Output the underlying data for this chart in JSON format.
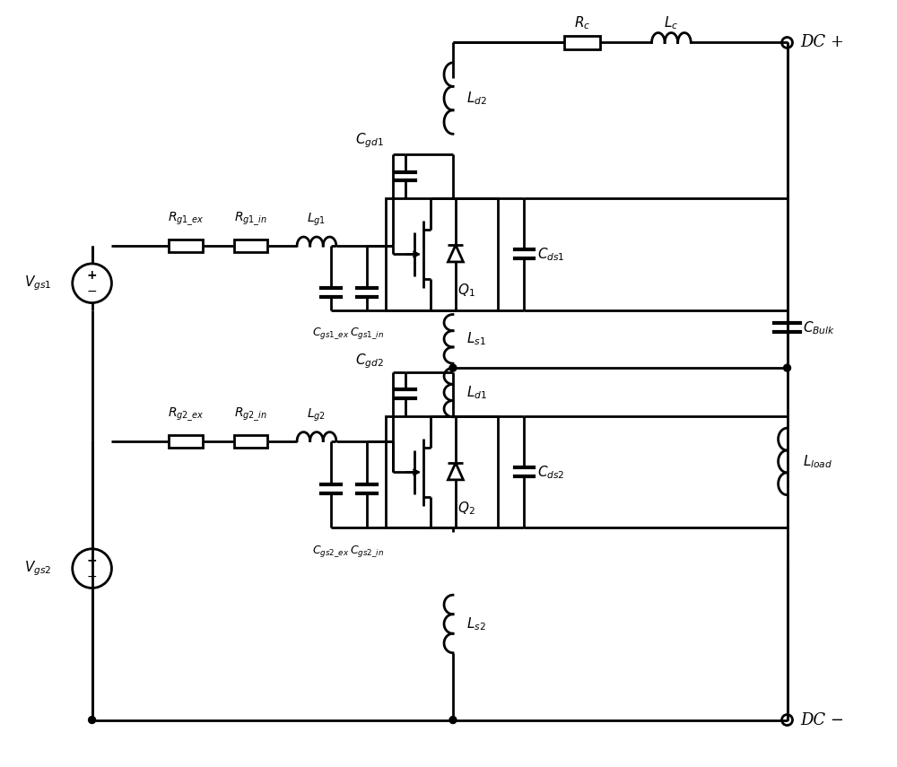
{
  "bg_color": "#ffffff",
  "line_color": "#000000",
  "lw": 2.0,
  "fig_width": 10.0,
  "fig_height": 8.55,
  "labels": {
    "Vgs1": "$V_{gs1}$",
    "Vgs2": "$V_{gs2}$",
    "Rg1ex": "$R_{g1\\_ex}$",
    "Rg1in": "$R_{g1\\_in}$",
    "Lg1": "$L_{g1}$",
    "Cgd1": "$C_{gd1}$",
    "Cgs1ex": "$C_{gs1\\_ex}$",
    "Cgs1in": "$C_{gs1\\_in}$",
    "Q1": "$Q_1$",
    "Cds1": "$C_{ds1}$",
    "Ld2": "$L_{d2}$",
    "Ls1": "$L_{s1}$",
    "Rc": "$R_c$",
    "Lc": "$L_c$",
    "CBulk": "$C_{Bulk}$",
    "Lload": "$L_{load}$",
    "DCp": "DC +",
    "DCm": "DC −",
    "Rg2ex": "$R_{g2\\_ex}$",
    "Rg2in": "$R_{g2\\_in}$",
    "Lg2": "$L_{g2}$",
    "Cgd2": "$C_{gd2}$",
    "Cgs2ex": "$C_{gs2\\_ex}$",
    "Cgs2in": "$C_{gs2\\_in}$",
    "Q2": "$Q_2$",
    "Cds2": "$C_{ds2}$",
    "Ld1": "$L_{d1}$",
    "Ls2": "$L_{s2}$"
  }
}
